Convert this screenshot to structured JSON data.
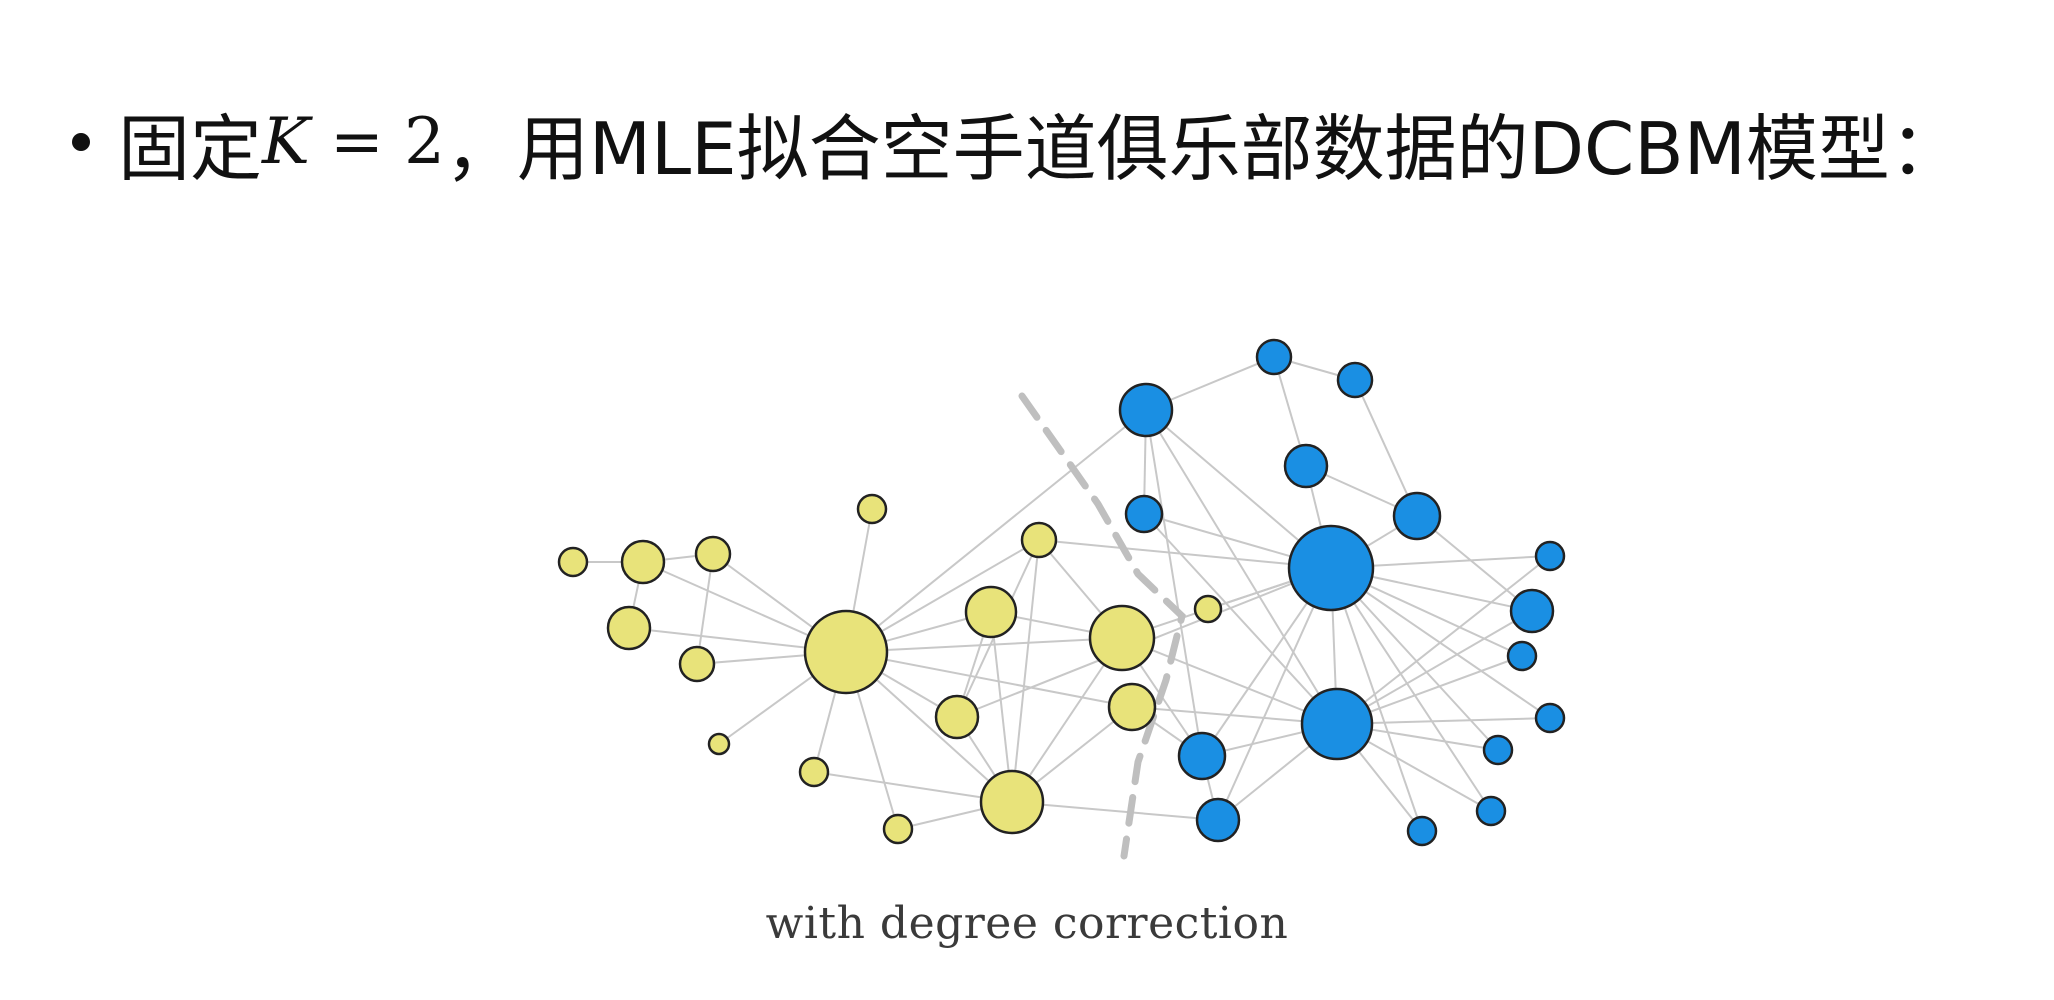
{
  "heading": {
    "pre": "固定",
    "math_var": "K",
    "math_rest": " = 2",
    "post": "，用MLE拟合空手道俱乐部数据的DCBM模型："
  },
  "figure": {
    "caption": "with degree correction"
  },
  "colors": {
    "group_a": "#e8e37a",
    "group_b": "#1a8fe3",
    "node_stroke": "#222222",
    "edge": "#c8c8c8",
    "divider": "#bfbfbf"
  }
}
